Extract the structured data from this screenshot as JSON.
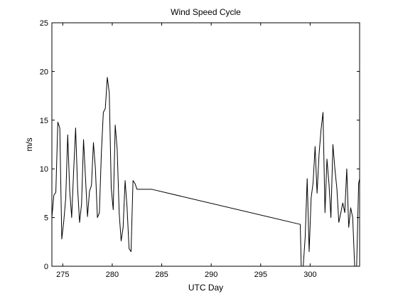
{
  "chart_data": {
    "type": "line",
    "title": "Wind Speed Cycle",
    "xlabel": "UTC Day",
    "ylabel": "m/s",
    "xlim": [
      273.9,
      305.0
    ],
    "ylim": [
      0,
      25
    ],
    "xticks": [
      275,
      280,
      285,
      290,
      295,
      300
    ],
    "yticks": [
      0,
      5,
      10,
      15,
      20,
      25
    ],
    "grid": false,
    "line_color": "#000000",
    "series": [
      {
        "x": [
          273.9,
          274.1,
          274.3,
          274.5,
          274.7,
          274.9,
          275.1,
          275.3,
          275.5,
          275.7,
          275.9,
          276.1,
          276.3,
          276.5,
          276.7,
          276.9,
          277.1,
          277.3,
          277.5,
          277.7,
          277.9,
          278.1,
          278.3,
          278.5,
          278.7,
          278.9,
          279.1,
          279.3,
          279.5,
          279.7,
          279.9,
          280.1,
          280.3,
          280.5,
          280.7,
          280.9,
          281.1,
          281.3,
          281.5,
          281.7,
          281.9,
          282.1,
          282.3,
          282.5,
          282.7,
          282.9,
          283.1,
          283.3,
          283.5,
          283.7,
          283.9,
          284.0,
          299.0,
          299.1,
          299.3,
          299.5,
          299.7,
          299.9,
          300.1,
          300.3,
          300.5,
          300.7,
          300.9,
          301.1,
          301.3,
          301.5,
          301.7,
          301.9,
          302.1,
          302.3,
          302.5,
          302.7,
          302.9,
          303.1,
          303.3,
          303.5,
          303.7,
          303.9,
          304.1,
          304.3,
          304.5,
          304.7,
          304.9,
          305.0
        ],
        "y": [
          5.0,
          7.3,
          7.6,
          14.8,
          14.2,
          2.8,
          4.6,
          7.0,
          13.5,
          7.8,
          5.0,
          9.8,
          14.2,
          8.0,
          4.5,
          6.4,
          13.0,
          9.0,
          5.1,
          7.7,
          8.3,
          12.7,
          10.0,
          5.0,
          5.5,
          11.6,
          15.8,
          16.2,
          19.4,
          17.8,
          8.0,
          5.8,
          14.5,
          12.0,
          5.5,
          2.6,
          4.0,
          8.8,
          6.0,
          1.8,
          1.5,
          8.8,
          8.5,
          7.9,
          7.9,
          7.9,
          7.9,
          7.9,
          7.9,
          7.9,
          7.9,
          7.9,
          4.3,
          0.0,
          0.0,
          3.0,
          9.0,
          1.5,
          7.0,
          8.6,
          12.3,
          7.5,
          11.5,
          14.0,
          15.8,
          5.5,
          11.0,
          8.5,
          5.0,
          12.5,
          10.0,
          8.0,
          4.5,
          5.5,
          6.5,
          5.5,
          10.0,
          4.0,
          6.0,
          5.0,
          0.0,
          0.0,
          8.5,
          9.0
        ]
      }
    ]
  }
}
